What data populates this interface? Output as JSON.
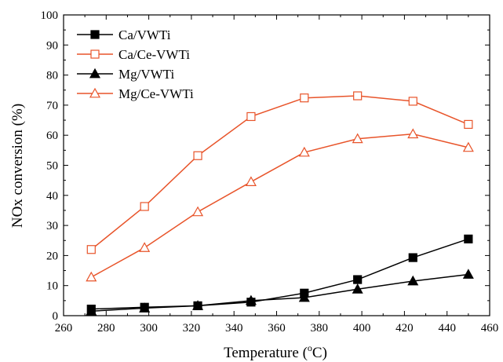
{
  "chart_data": {
    "type": "line",
    "title": "",
    "xlabel_main": "Temperature (",
    "xlabel_sup": "o",
    "xlabel_end": "C)",
    "ylabel": "NOx conversion (%)",
    "xlim": [
      260,
      460
    ],
    "ylim": [
      0,
      100
    ],
    "xticks": [
      "260",
      "280",
      "300",
      "320",
      "340",
      "360",
      "380",
      "400",
      "420",
      "440",
      "460"
    ],
    "yticks": [
      "0",
      "10",
      "20",
      "30",
      "40",
      "50",
      "60",
      "70",
      "80",
      "90",
      "100"
    ],
    "grid": false,
    "legend_position": "top-left",
    "series": [
      {
        "name": "Ca/VWTi",
        "color": "#000000",
        "marker": "square-filled",
        "x": [
          273,
          298,
          323,
          348,
          373,
          398,
          424,
          450
        ],
        "y": [
          2.2,
          2.8,
          3.3,
          4.5,
          7.5,
          12.0,
          19.3,
          25.5
        ]
      },
      {
        "name": "Ca/Ce-VWTi",
        "color": "#e8542a",
        "marker": "square-open",
        "x": [
          273,
          298,
          323,
          348,
          373,
          398,
          424,
          450
        ],
        "y": [
          22.0,
          36.3,
          53.2,
          66.2,
          72.4,
          73.1,
          71.3,
          63.6
        ]
      },
      {
        "name": "Mg/VWTi",
        "color": "#000000",
        "marker": "triangle-filled",
        "x": [
          273,
          298,
          323,
          348,
          373,
          398,
          424,
          450
        ],
        "y": [
          1.5,
          2.5,
          3.3,
          5.0,
          6.0,
          8.8,
          11.5,
          13.7
        ]
      },
      {
        "name": "Mg/Ce-VWTi",
        "color": "#e8542a",
        "marker": "triangle-open",
        "x": [
          273,
          298,
          323,
          348,
          373,
          398,
          424,
          450
        ],
        "y": [
          12.8,
          22.6,
          34.5,
          44.5,
          54.3,
          58.8,
          60.4,
          55.9
        ]
      }
    ]
  }
}
